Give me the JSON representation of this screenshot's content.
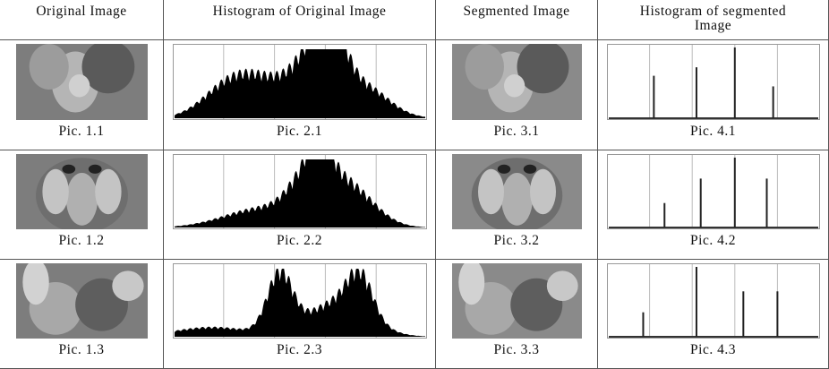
{
  "header": [
    "Original Image",
    "Histogram of Original Image",
    "Segmented Image",
    "Histogram of segmented Image"
  ],
  "rows": [
    [
      "Pic. 1.1",
      "Pic. 2.1",
      "Pic. 3.1",
      "Pic. 4.1"
    ],
    [
      "Pic. 1.2",
      "Pic. 2.2",
      "Pic. 3.2",
      "Pic. 4.2"
    ],
    [
      "Pic. 1.3",
      "Pic. 2.3",
      "Pic. 3.3",
      "Pic. 4.3"
    ]
  ]
}
